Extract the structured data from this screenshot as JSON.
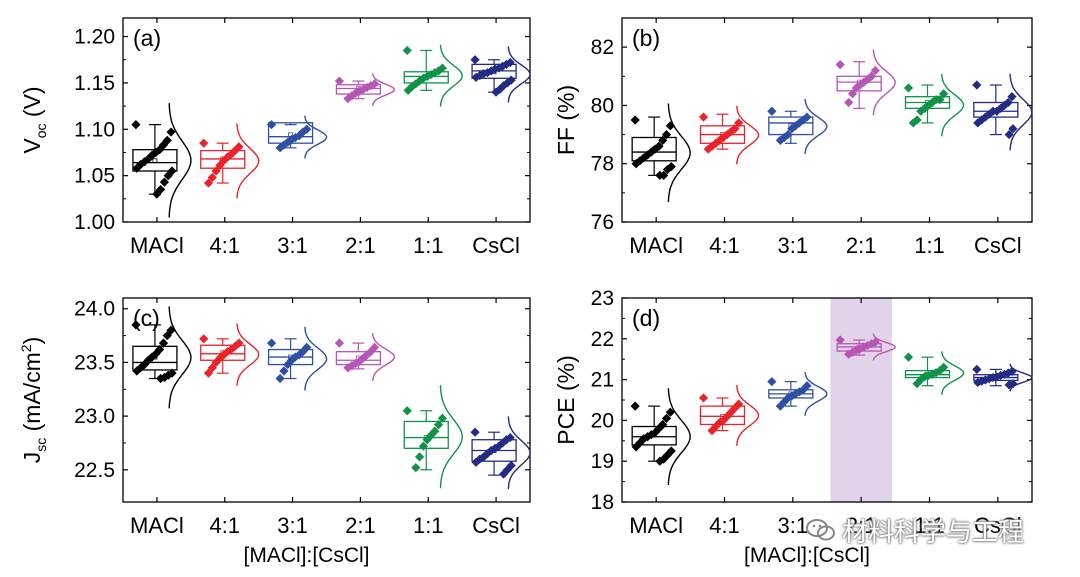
{
  "colors": {
    "MACl": "#000000",
    "4:1": "#e8232a",
    "3:1": "#2e4fa3",
    "2:1": "#b556b4",
    "1:1": "#11924a",
    "CsCl": "#232b82",
    "highlight": "#e2d3e8"
  },
  "watermark": {
    "text": "材料科学与工程",
    "icon": "wechat-icon"
  },
  "chart_data": [
    {
      "type": "box",
      "panel_label": "(a)",
      "ylabel": "V",
      "ylabel_sub": "oc",
      "ylabel_suffix": " (V)",
      "ylim": [
        1.0,
        1.22
      ],
      "yticks": [
        "1.00",
        "1.05",
        "1.10",
        "1.15",
        "1.20"
      ],
      "categories": [
        "MACl",
        "4:1",
        "3:1",
        "2:1",
        "1:1",
        "CsCl"
      ],
      "xlabel": "",
      "series": [
        {
          "name": "MACl",
          "q1": 1.055,
          "median": 1.064,
          "q3": 1.078,
          "mean": 1.066,
          "whisker": [
            1.03,
            1.105
          ],
          "points": [
            1.105,
            1.097,
            1.088,
            1.083,
            1.078,
            1.075,
            1.072,
            1.068,
            1.065,
            1.062,
            1.058,
            1.055,
            1.05,
            1.043,
            1.035,
            1.03
          ]
        },
        {
          "name": "4:1",
          "q1": 1.058,
          "median": 1.068,
          "q3": 1.077,
          "mean": 1.068,
          "whisker": [
            1.042,
            1.085
          ],
          "points": [
            1.085,
            1.081,
            1.077,
            1.073,
            1.07,
            1.066,
            1.061,
            1.055,
            1.048,
            1.042
          ]
        },
        {
          "name": "3:1",
          "q1": 1.085,
          "median": 1.092,
          "q3": 1.107,
          "mean": 1.094,
          "whisker": [
            1.08,
            1.105
          ],
          "points": [
            1.105,
            1.1,
            1.097,
            1.093,
            1.091,
            1.089,
            1.086,
            1.083,
            1.08
          ]
        },
        {
          "name": "2:1",
          "q1": 1.138,
          "median": 1.144,
          "q3": 1.148,
          "mean": 1.144,
          "whisker": [
            1.133,
            1.152
          ],
          "points": [
            1.152,
            1.149,
            1.147,
            1.145,
            1.143,
            1.141,
            1.139,
            1.136,
            1.133
          ]
        },
        {
          "name": "1:1",
          "q1": 1.15,
          "median": 1.157,
          "q3": 1.162,
          "mean": 1.157,
          "whisker": [
            1.142,
            1.185
          ],
          "points": [
            1.185,
            1.166,
            1.163,
            1.161,
            1.159,
            1.157,
            1.155,
            1.152,
            1.149,
            1.146,
            1.142
          ]
        },
        {
          "name": "CsCl",
          "q1": 1.155,
          "median": 1.163,
          "q3": 1.17,
          "mean": 1.162,
          "whisker": [
            1.14,
            1.175
          ],
          "points": [
            1.175,
            1.172,
            1.17,
            1.168,
            1.166,
            1.165,
            1.163,
            1.161,
            1.16,
            1.158,
            1.156,
            1.153,
            1.15,
            1.147,
            1.143,
            1.14
          ]
        }
      ]
    },
    {
      "type": "box",
      "panel_label": "(b)",
      "ylabel": "FF (%)",
      "ylabel_sub": "",
      "ylabel_suffix": "",
      "ylim": [
        76,
        83
      ],
      "yticks": [
        "76",
        "78",
        "80",
        "82"
      ],
      "categories": [
        "MACl",
        "4:1",
        "3:1",
        "2:1",
        "1:1",
        "CsCl"
      ],
      "xlabel": "",
      "series": [
        {
          "name": "MACl",
          "q1": 78.1,
          "median": 78.4,
          "q3": 78.9,
          "mean": 78.5,
          "whisker": [
            77.6,
            79.6
          ],
          "points": [
            79.5,
            79.3,
            79.0,
            78.8,
            78.6,
            78.5,
            78.4,
            78.3,
            78.2,
            78.1,
            78.0,
            77.9,
            77.8,
            77.6,
            77.6
          ]
        },
        {
          "name": "4:1",
          "q1": 78.7,
          "median": 79.0,
          "q3": 79.3,
          "mean": 79.0,
          "whisker": [
            78.5,
            79.7
          ],
          "points": [
            79.6,
            79.4,
            79.2,
            79.1,
            79.0,
            78.9,
            78.8,
            78.7,
            78.6,
            78.5
          ]
        },
        {
          "name": "3:1",
          "q1": 79.0,
          "median": 79.4,
          "q3": 79.6,
          "mean": 79.3,
          "whisker": [
            78.7,
            79.8
          ],
          "points": [
            79.8,
            79.6,
            79.5,
            79.4,
            79.3,
            79.2,
            79.0,
            78.9,
            78.8
          ]
        },
        {
          "name": "2:1",
          "q1": 80.5,
          "median": 80.8,
          "q3": 81.0,
          "mean": 80.8,
          "whisker": [
            79.9,
            81.5
          ],
          "points": [
            81.4,
            81.2,
            81.0,
            80.9,
            80.8,
            80.7,
            80.6,
            80.4,
            80.1
          ]
        },
        {
          "name": "1:1",
          "q1": 79.9,
          "median": 80.1,
          "q3": 80.3,
          "mean": 80.1,
          "whisker": [
            79.4,
            80.7
          ],
          "points": [
            80.6,
            80.4,
            80.2,
            80.2,
            80.1,
            80.0,
            79.9,
            79.8,
            79.5,
            79.4
          ]
        },
        {
          "name": "CsCl",
          "q1": 79.6,
          "median": 79.8,
          "q3": 80.1,
          "mean": 79.8,
          "whisker": [
            79.0,
            80.7
          ],
          "points": [
            80.7,
            80.3,
            80.1,
            80.0,
            79.9,
            79.8,
            79.8,
            79.7,
            79.6,
            79.5,
            79.4,
            79.2,
            79.0
          ]
        }
      ]
    },
    {
      "type": "box",
      "panel_label": "(c)",
      "ylabel": "J",
      "ylabel_sub": "sc",
      "ylabel_suffix": " (mA/cm",
      "ylabel_sup": "2",
      "ylabel_end": ")",
      "ylim": [
        22.2,
        24.1
      ],
      "yticks": [
        "22.5",
        "23.0",
        "23.5",
        "24.0"
      ],
      "categories": [
        "MACl",
        "4:1",
        "3:1",
        "2:1",
        "1:1",
        "CsCl"
      ],
      "xlabel": "[MACl]:[CsCl]",
      "series": [
        {
          "name": "MACl",
          "q1": 23.43,
          "median": 23.5,
          "q3": 23.65,
          "mean": 23.55,
          "whisker": [
            23.35,
            23.85
          ],
          "points": [
            23.85,
            23.8,
            23.75,
            23.68,
            23.62,
            23.58,
            23.55,
            23.52,
            23.48,
            23.45,
            23.42,
            23.4,
            23.38,
            23.36,
            23.35
          ]
        },
        {
          "name": "4:1",
          "q1": 23.52,
          "median": 23.58,
          "q3": 23.66,
          "mean": 23.59,
          "whisker": [
            23.4,
            23.72
          ],
          "points": [
            23.72,
            23.68,
            23.65,
            23.62,
            23.6,
            23.57,
            23.54,
            23.5,
            23.45,
            23.4
          ]
        },
        {
          "name": "3:1",
          "q1": 23.48,
          "median": 23.55,
          "q3": 23.62,
          "mean": 23.55,
          "whisker": [
            23.35,
            23.72
          ],
          "points": [
            23.68,
            23.64,
            23.6,
            23.57,
            23.55,
            23.52,
            23.48,
            23.42,
            23.35
          ]
        },
        {
          "name": "2:1",
          "q1": 23.48,
          "median": 23.52,
          "q3": 23.6,
          "mean": 23.54,
          "whisker": [
            23.44,
            23.68
          ],
          "points": [
            23.68,
            23.64,
            23.6,
            23.57,
            23.54,
            23.51,
            23.49,
            23.47,
            23.45
          ]
        },
        {
          "name": "1:1",
          "q1": 22.7,
          "median": 22.8,
          "q3": 22.95,
          "mean": 22.8,
          "whisker": [
            22.5,
            23.05
          ],
          "points": [
            23.05,
            22.98,
            22.92,
            22.86,
            22.82,
            22.78,
            22.72,
            22.62,
            22.52
          ]
        },
        {
          "name": "CsCl",
          "q1": 22.58,
          "median": 22.68,
          "q3": 22.78,
          "mean": 22.68,
          "whisker": [
            22.45,
            22.85
          ],
          "points": [
            22.85,
            22.8,
            22.78,
            22.75,
            22.72,
            22.7,
            22.68,
            22.65,
            22.62,
            22.6,
            22.57,
            22.54,
            22.5,
            22.46
          ]
        }
      ]
    },
    {
      "type": "box",
      "panel_label": "(d)",
      "ylabel": "PCE (%)",
      "ylabel_sub": "",
      "ylabel_suffix": "",
      "ylim": [
        18,
        23
      ],
      "yticks": [
        "18",
        "19",
        "20",
        "21",
        "22",
        "23"
      ],
      "categories": [
        "MACl",
        "4:1",
        "3:1",
        "2:1",
        "1:1",
        "CsCl"
      ],
      "xlabel": "[MACl]:[CsCl]",
      "highlight_category": "2:1",
      "series": [
        {
          "name": "MACl",
          "q1": 19.4,
          "median": 19.6,
          "q3": 19.85,
          "mean": 19.65,
          "whisker": [
            19.0,
            20.35
          ],
          "points": [
            20.35,
            20.2,
            20.05,
            19.9,
            19.8,
            19.7,
            19.65,
            19.6,
            19.55,
            19.45,
            19.35,
            19.25,
            19.15,
            19.05,
            19.0
          ]
        },
        {
          "name": "4:1",
          "q1": 19.9,
          "median": 20.1,
          "q3": 20.35,
          "mean": 20.1,
          "whisker": [
            19.75,
            20.55
          ],
          "points": [
            20.55,
            20.4,
            20.3,
            20.2,
            20.1,
            20.0,
            19.95,
            19.85,
            19.75
          ]
        },
        {
          "name": "3:1",
          "q1": 20.55,
          "median": 20.65,
          "q3": 20.75,
          "mean": 20.65,
          "whisker": [
            20.35,
            20.95
          ],
          "points": [
            20.95,
            20.85,
            20.75,
            20.7,
            20.65,
            20.6,
            20.55,
            20.45,
            20.35
          ]
        },
        {
          "name": "2:1",
          "q1": 21.7,
          "median": 21.8,
          "q3": 21.88,
          "mean": 21.79,
          "whisker": [
            21.6,
            21.97
          ],
          "points": [
            21.97,
            21.92,
            21.88,
            21.84,
            21.8,
            21.76,
            21.72,
            21.67,
            21.62
          ]
        },
        {
          "name": "1:1",
          "q1": 21.05,
          "median": 21.12,
          "q3": 21.22,
          "mean": 21.13,
          "whisker": [
            20.85,
            21.55
          ],
          "points": [
            21.55,
            21.3,
            21.22,
            21.17,
            21.13,
            21.1,
            21.07,
            21.0,
            20.9
          ]
        },
        {
          "name": "CsCl",
          "q1": 20.98,
          "median": 21.05,
          "q3": 21.12,
          "mean": 21.05,
          "whisker": [
            20.85,
            21.25
          ],
          "points": [
            21.25,
            21.2,
            21.16,
            21.13,
            21.1,
            21.07,
            21.05,
            21.02,
            20.99,
            20.96,
            20.93,
            20.9,
            20.87
          ]
        }
      ]
    }
  ]
}
